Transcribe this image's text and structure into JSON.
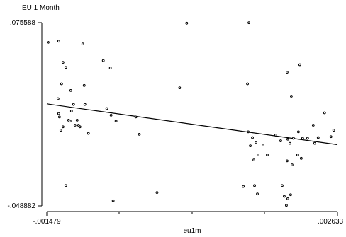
{
  "chart_data": {
    "type": "scatter",
    "title": "EU 1 Month",
    "xlabel": "eu1m",
    "ylabel": "",
    "xlim": [
      -0.001479,
      0.002633
    ],
    "ylim": [
      -0.048882,
      0.075588
    ],
    "x_tick_labels": [
      "-.001479",
      ".002633"
    ],
    "y_tick_labels": [
      ".075588",
      "-.048882"
    ],
    "grid": false,
    "legend": "none",
    "fit_line": {
      "x": [
        -0.001479,
        0.002633
      ],
      "y": [
        0.0204,
        -0.0073
      ]
    },
    "series": [
      {
        "points": [
          {
            "x": -0.00146,
            "y": 0.0622
          },
          {
            "x": -0.00131,
            "y": 0.063
          },
          {
            "x": -0.00125,
            "y": 0.0486
          },
          {
            "x": -0.00121,
            "y": 0.0452
          },
          {
            "x": -0.00127,
            "y": 0.034
          },
          {
            "x": -0.00132,
            "y": 0.0239
          },
          {
            "x": -0.00114,
            "y": 0.0295
          },
          {
            "x": -0.0011,
            "y": 0.02
          },
          {
            "x": -0.00113,
            "y": 0.0155
          },
          {
            "x": -0.00117,
            "y": 0.0093
          },
          {
            "x": -0.00125,
            "y": 0.0048
          },
          {
            "x": -0.00131,
            "y": 0.0138
          },
          {
            "x": -0.0013,
            "y": 0.0115
          },
          {
            "x": -0.00128,
            "y": 0.0025
          },
          {
            "x": -0.00105,
            "y": 0.0093
          },
          {
            "x": -0.00101,
            "y": 0.0048
          },
          {
            "x": -0.00103,
            "y": 0.0059
          },
          {
            "x": -0.00108,
            "y": 0.0059
          },
          {
            "x": -0.00115,
            "y": 0.0087
          },
          {
            "x": -0.00121,
            "y": -0.0351
          },
          {
            "x": -0.00097,
            "y": 0.0611
          },
          {
            "x": -0.00095,
            "y": 0.0329
          },
          {
            "x": -0.00094,
            "y": 0.02
          },
          {
            "x": -0.00089,
            "y": 0.0003
          },
          {
            "x": -0.00068,
            "y": 0.0498
          },
          {
            "x": -0.00063,
            "y": 0.0172
          },
          {
            "x": -0.00057,
            "y": 0.0127
          },
          {
            "x": -0.00058,
            "y": 0.0448
          },
          {
            "x": -0.0005,
            "y": 0.0087
          },
          {
            "x": -0.00054,
            "y": -0.0454
          },
          {
            "x": -0.00022,
            "y": 0.0115
          },
          {
            "x": -0.00017,
            "y": -0.0003
          },
          {
            "x": 0.0005,
            "y": 0.0752
          },
          {
            "x": 0.0004,
            "y": 0.0313
          },
          {
            "x": 8e-05,
            "y": -0.0398
          }
        ]
      },
      {
        "points": [
          {
            "x": 0.00138,
            "y": 0.0755
          },
          {
            "x": 0.00136,
            "y": 0.034
          },
          {
            "x": 0.00137,
            "y": 0.0014
          },
          {
            "x": 0.0014,
            "y": -0.0081
          },
          {
            "x": 0.00143,
            "y": -0.0025
          },
          {
            "x": 0.00148,
            "y": -0.0059
          },
          {
            "x": 0.00151,
            "y": -0.0143
          },
          {
            "x": 0.00145,
            "y": -0.0177
          },
          {
            "x": 0.00146,
            "y": -0.0351
          },
          {
            "x": 0.0013,
            "y": -0.0357
          },
          {
            "x": 0.00164,
            "y": -0.0143
          },
          {
            "x": 0.00176,
            "y": -0.0008
          },
          {
            "x": 0.00183,
            "y": -0.0047
          },
          {
            "x": 0.00193,
            "y": -0.0036
          },
          {
            "x": 0.00192,
            "y": 0.0419
          },
          {
            "x": 0.00198,
            "y": 0.0256
          },
          {
            "x": 0.00196,
            "y": -0.0064
          },
          {
            "x": 0.00201,
            "y": -0.003
          },
          {
            "x": 0.00208,
            "y": 0.0014
          },
          {
            "x": 0.0021,
            "y": 0.047
          },
          {
            "x": 0.00214,
            "y": -0.003
          },
          {
            "x": 0.00221,
            "y": -0.003
          },
          {
            "x": 0.00229,
            "y": 0.0059
          },
          {
            "x": 0.00245,
            "y": 0.0143
          },
          {
            "x": 0.00258,
            "y": 0.0025
          },
          {
            "x": 0.00207,
            "y": -0.0143
          },
          {
            "x": 0.00199,
            "y": -0.021
          },
          {
            "x": 0.00192,
            "y": -0.0183
          },
          {
            "x": 0.00185,
            "y": -0.0351
          },
          {
            "x": 0.00188,
            "y": -0.0424
          },
          {
            "x": 0.00193,
            "y": -0.044
          },
          {
            "x": 0.00197,
            "y": -0.0413
          },
          {
            "x": 0.00212,
            "y": -0.0166
          },
          {
            "x": 0.00231,
            "y": -0.0064
          },
          {
            "x": 0.00236,
            "y": -0.0025
          },
          {
            "x": 0.00254,
            "y": -0.0019
          },
          {
            "x": 0.00191,
            "y": -0.0485
          },
          {
            "x": 0.00158,
            "y": -0.0076
          },
          {
            "x": 0.0015,
            "y": -0.0408
          }
        ]
      }
    ]
  }
}
